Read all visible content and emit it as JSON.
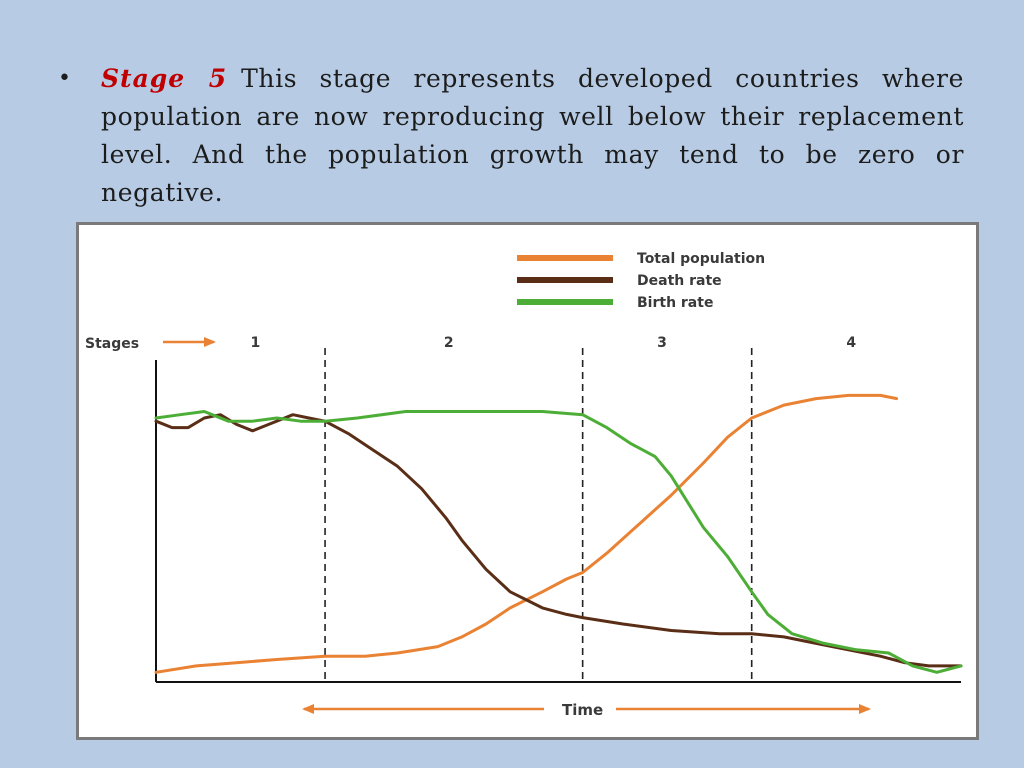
{
  "slide": {
    "bullet_marker": "•",
    "stage_label": "Stage 5",
    "text": "This stage represents developed countries where population are now reproducing well below their replacement level. And the population growth may tend to be zero or negative."
  },
  "chart_data": {
    "type": "line",
    "stages_label": "Stages",
    "stages": [
      "1",
      "2",
      "3",
      "4"
    ],
    "stage_boundaries": [
      0.21,
      0.53,
      0.74
    ],
    "xlabel": "Time",
    "ylabel": "",
    "xlim": [
      0,
      1
    ],
    "ylim": [
      0,
      100
    ],
    "legend_position": "top-right",
    "series": [
      {
        "name": "Total population",
        "color": "#ea8233",
        "x": [
          0.0,
          0.05,
          0.1,
          0.15,
          0.21,
          0.26,
          0.3,
          0.35,
          0.38,
          0.41,
          0.44,
          0.48,
          0.51,
          0.53,
          0.56,
          0.6,
          0.64,
          0.68,
          0.71,
          0.74,
          0.78,
          0.82,
          0.86,
          0.9,
          0.92
        ],
        "values": [
          3,
          5,
          6,
          7,
          8,
          8,
          9,
          11,
          14,
          18,
          23,
          28,
          32,
          34,
          40,
          49,
          58,
          68,
          76,
          82,
          86,
          88,
          89,
          89,
          88
        ]
      },
      {
        "name": "Death rate",
        "color": "#5a2e16",
        "x": [
          0.0,
          0.02,
          0.04,
          0.06,
          0.08,
          0.1,
          0.12,
          0.14,
          0.17,
          0.19,
          0.21,
          0.24,
          0.27,
          0.3,
          0.33,
          0.36,
          0.38,
          0.41,
          0.44,
          0.48,
          0.51,
          0.53,
          0.58,
          0.64,
          0.7,
          0.74,
          0.78,
          0.82,
          0.86,
          0.9,
          0.93,
          0.96,
          1.0
        ],
        "values": [
          81,
          79,
          79,
          82,
          83,
          80,
          78,
          80,
          83,
          82,
          81,
          77,
          72,
          67,
          60,
          51,
          44,
          35,
          28,
          23,
          21,
          20,
          18,
          16,
          15,
          15,
          14,
          12,
          10,
          8,
          6,
          5,
          5
        ]
      },
      {
        "name": "Birth rate",
        "color": "#4cae36",
        "x": [
          0.0,
          0.03,
          0.06,
          0.09,
          0.12,
          0.15,
          0.18,
          0.21,
          0.25,
          0.31,
          0.4,
          0.48,
          0.53,
          0.56,
          0.59,
          0.62,
          0.64,
          0.66,
          0.68,
          0.71,
          0.74,
          0.76,
          0.79,
          0.83,
          0.87,
          0.91,
          0.94,
          0.97,
          1.0
        ],
        "values": [
          82,
          83,
          84,
          81,
          81,
          82,
          81,
          81,
          82,
          84,
          84,
          84,
          83,
          79,
          74,
          70,
          64,
          56,
          48,
          39,
          28,
          21,
          15,
          12,
          10,
          9,
          5,
          3,
          5
        ]
      }
    ]
  }
}
